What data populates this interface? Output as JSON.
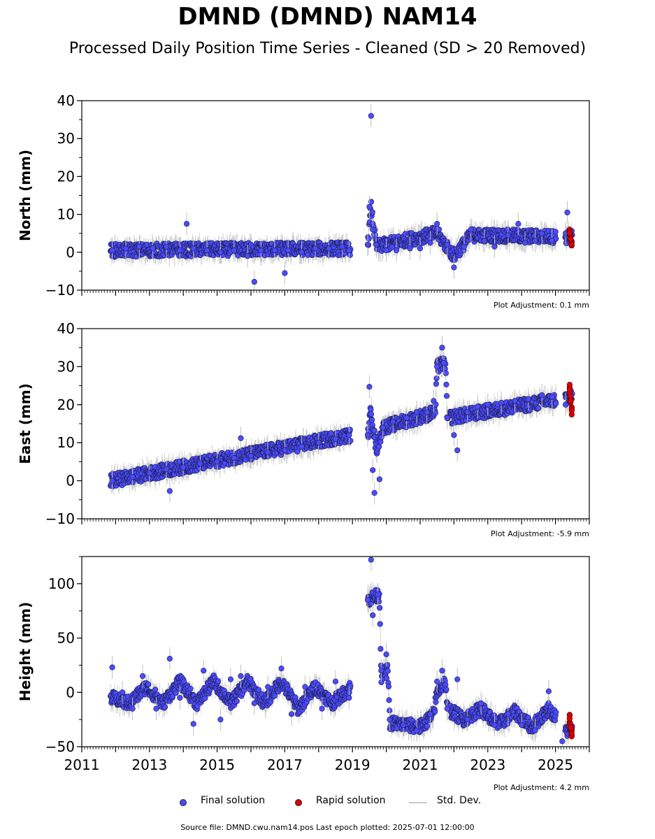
{
  "title": "DMND (DMND) NAM14",
  "subtitle": "Processed Daily Position Time Series - Cleaned (SD > 20 Removed)",
  "legend": {
    "final": "Final solution",
    "rapid": "Rapid solution",
    "std": "Std. Dev."
  },
  "source": "Source file: DMND.cwu.nam14.pos  Last epoch plotted: 2025-07-01 12:00:00",
  "colors": {
    "final": "#4b4bff",
    "rapid": "#e00000",
    "std": "#bfbfbf"
  },
  "chart_data": [
    {
      "type": "scatter",
      "ylabel": "North (mm)",
      "ylim": [
        -10,
        40
      ],
      "yticks": [
        -10,
        0,
        10,
        20,
        30,
        40
      ],
      "xlim": [
        2011,
        2026
      ],
      "adjustment": "Plot Adjustment: 0.1 mm",
      "final_series": [
        [
          2011.9,
          0.5
        ],
        [
          2012.3,
          1.0
        ],
        [
          2012.7,
          1.5
        ],
        [
          2013.1,
          1.0
        ],
        [
          2013.5,
          1.5
        ],
        [
          2013.9,
          0.5
        ],
        [
          2014.1,
          7.5
        ],
        [
          2014.3,
          1.0
        ],
        [
          2014.7,
          0.5
        ],
        [
          2015.1,
          0.0
        ],
        [
          2015.5,
          0.5
        ],
        [
          2015.9,
          -1.0
        ],
        [
          2016.1,
          -7.8
        ],
        [
          2016.3,
          0.5
        ],
        [
          2016.7,
          0.5
        ],
        [
          2017.0,
          -5.5
        ],
        [
          2017.1,
          0.5
        ],
        [
          2017.5,
          0.0
        ],
        [
          2017.9,
          1.0
        ],
        [
          2018.3,
          1.0
        ],
        [
          2018.7,
          1.5
        ],
        [
          2018.9,
          0.5
        ],
        [
          2019.45,
          2.0
        ],
        [
          2019.5,
          12.0
        ],
        [
          2019.55,
          36.0
        ],
        [
          2019.6,
          6.0
        ],
        [
          2019.7,
          2.0
        ],
        [
          2020.0,
          0.5
        ],
        [
          2020.3,
          0.5
        ],
        [
          2020.7,
          1.0
        ],
        [
          2021.0,
          1.0
        ],
        [
          2021.3,
          2.5
        ],
        [
          2021.5,
          7.5
        ],
        [
          2021.8,
          2.0
        ],
        [
          2022.0,
          -4.0
        ],
        [
          2022.3,
          1.5
        ],
        [
          2022.5,
          6.0
        ],
        [
          2022.9,
          3.0
        ],
        [
          2023.2,
          1.5
        ],
        [
          2023.6,
          4.5
        ],
        [
          2023.9,
          7.5
        ],
        [
          2024.1,
          2.5
        ],
        [
          2024.4,
          3.0
        ],
        [
          2024.6,
          5.0
        ],
        [
          2024.9,
          3.0
        ],
        [
          2025.3,
          5.0
        ],
        [
          2025.35,
          10.5
        ]
      ],
      "rapid_series": [
        [
          2025.42,
          5.0
        ],
        [
          2025.45,
          3.5
        ],
        [
          2025.48,
          2.0
        ]
      ],
      "trend": [
        [
          2011.85,
          0.5
        ],
        [
          2018.95,
          1.0
        ],
        [
          2019.45,
          1.5
        ],
        [
          2019.55,
          12.0
        ],
        [
          2019.7,
          1.5
        ],
        [
          2021.5,
          5.0
        ],
        [
          2022.0,
          -1.0
        ],
        [
          2022.5,
          4.5
        ],
        [
          2025.5,
          4.0
        ]
      ]
    },
    {
      "type": "scatter",
      "ylabel": "East (mm)",
      "ylim": [
        -10,
        40
      ],
      "yticks": [
        -10,
        0,
        10,
        20,
        30,
        40
      ],
      "xlim": [
        2011,
        2026
      ],
      "adjustment": "Plot Adjustment: -5.9 mm",
      "final_series": [
        [
          2011.9,
          0.0
        ],
        [
          2012.5,
          1.0
        ],
        [
          2013.0,
          2.0
        ],
        [
          2013.5,
          3.0
        ],
        [
          2013.6,
          -2.7
        ],
        [
          2014.0,
          3.5
        ],
        [
          2014.5,
          4.5
        ],
        [
          2015.0,
          5.0
        ],
        [
          2015.5,
          6.0
        ],
        [
          2015.7,
          11.2
        ],
        [
          2016.0,
          6.5
        ],
        [
          2016.5,
          7.5
        ],
        [
          2017.0,
          8.0
        ],
        [
          2017.5,
          9.0
        ],
        [
          2018.0,
          10.0
        ],
        [
          2018.5,
          11.0
        ],
        [
          2018.9,
          12.0
        ],
        [
          2019.45,
          12.0
        ],
        [
          2019.5,
          24.7
        ],
        [
          2019.6,
          2.8
        ],
        [
          2019.65,
          -3.2
        ],
        [
          2019.8,
          0.4
        ],
        [
          2019.9,
          14.0
        ],
        [
          2020.2,
          15.5
        ],
        [
          2020.6,
          16.5
        ],
        [
          2020.9,
          18.0
        ],
        [
          2021.2,
          18.0
        ],
        [
          2021.4,
          21.0
        ],
        [
          2021.5,
          30.0
        ],
        [
          2021.65,
          35.0
        ],
        [
          2021.7,
          31.0
        ],
        [
          2021.8,
          16.5
        ],
        [
          2022.0,
          12.0
        ],
        [
          2022.1,
          8.0
        ],
        [
          2022.4,
          18.0
        ],
        [
          2022.7,
          19.5
        ],
        [
          2023.0,
          20.0
        ],
        [
          2023.4,
          20.5
        ],
        [
          2023.8,
          21.0
        ],
        [
          2024.2,
          21.5
        ],
        [
          2024.6,
          22.5
        ],
        [
          2024.9,
          22.0
        ],
        [
          2025.3,
          20.0
        ]
      ],
      "rapid_series": [
        [
          2025.42,
          24.0
        ],
        [
          2025.45,
          21.0
        ],
        [
          2025.48,
          18.4
        ]
      ],
      "trend": [
        [
          2011.85,
          0.0
        ],
        [
          2018.95,
          12.0
        ],
        [
          2019.45,
          11.5
        ],
        [
          2019.55,
          19.0
        ],
        [
          2019.7,
          8.0
        ],
        [
          2019.9,
          14.0
        ],
        [
          2021.45,
          18.0
        ],
        [
          2021.5,
          30.0
        ],
        [
          2021.75,
          31.0
        ],
        [
          2021.8,
          16.5
        ],
        [
          2025.5,
          22.0
        ]
      ]
    },
    {
      "type": "scatter",
      "ylabel": "Height (mm)",
      "ylim": [
        -50,
        125
      ],
      "yticks": [
        -50,
        0,
        50,
        100
      ],
      "xlim": [
        2011,
        2026
      ],
      "xticks": [
        2011,
        2013,
        2015,
        2017,
        2019,
        2021,
        2023,
        2025
      ],
      "adjustment": "Plot Adjustment: 4.2 mm",
      "final_series": [
        [
          2011.9,
          23.0
        ],
        [
          2012.2,
          0.0
        ],
        [
          2012.5,
          -15.0
        ],
        [
          2012.8,
          15.0
        ],
        [
          2013.2,
          -15.0
        ],
        [
          2013.6,
          31.0
        ],
        [
          2013.9,
          -5.0
        ],
        [
          2014.3,
          -29.0
        ],
        [
          2014.6,
          20.0
        ],
        [
          2015.1,
          -25.0
        ],
        [
          2015.4,
          12.0
        ],
        [
          2015.7,
          15.0
        ],
        [
          2016.1,
          -10.0
        ],
        [
          2016.5,
          5.0
        ],
        [
          2016.9,
          22.0
        ],
        [
          2017.2,
          -20.0
        ],
        [
          2017.6,
          5.0
        ],
        [
          2018.1,
          -15.0
        ],
        [
          2018.5,
          10.0
        ],
        [
          2018.9,
          -5.0
        ],
        [
          2019.45,
          85.0
        ],
        [
          2019.55,
          122.0
        ],
        [
          2019.6,
          71.0
        ],
        [
          2019.75,
          90.0
        ],
        [
          2019.85,
          20.0
        ],
        [
          2020.0,
          35.0
        ],
        [
          2020.1,
          -25.0
        ],
        [
          2020.5,
          -30.0
        ],
        [
          2020.9,
          -35.0
        ],
        [
          2021.3,
          -20.0
        ],
        [
          2021.5,
          10.0
        ],
        [
          2021.65,
          20.0
        ],
        [
          2021.8,
          -15.0
        ],
        [
          2022.1,
          12.0
        ],
        [
          2022.4,
          -25.0
        ],
        [
          2022.8,
          -10.0
        ],
        [
          2023.2,
          -30.0
        ],
        [
          2023.6,
          -20.0
        ],
        [
          2024.0,
          -30.0
        ],
        [
          2024.4,
          -35.0
        ],
        [
          2024.8,
          1.0
        ],
        [
          2025.2,
          -45.0
        ]
      ],
      "rapid_series": [
        [
          2025.42,
          -24.0
        ],
        [
          2025.45,
          -32.0
        ],
        [
          2025.48,
          -38.0
        ]
      ],
      "trend": [
        [
          2011.85,
          -5.0
        ],
        [
          2012.4,
          -10.0
        ],
        [
          2012.9,
          5.0
        ],
        [
          2013.4,
          -10.0
        ],
        [
          2013.9,
          10.0
        ],
        [
          2014.4,
          -10.0
        ],
        [
          2014.9,
          10.0
        ],
        [
          2015.4,
          -10.0
        ],
        [
          2015.9,
          10.0
        ],
        [
          2016.4,
          -10.0
        ],
        [
          2016.9,
          10.0
        ],
        [
          2017.4,
          -15.0
        ],
        [
          2017.9,
          5.0
        ],
        [
          2018.4,
          -10.0
        ],
        [
          2018.95,
          5.0
        ],
        [
          2019.45,
          85.0
        ],
        [
          2019.8,
          90.0
        ],
        [
          2019.85,
          15.0
        ],
        [
          2020.05,
          20.0
        ],
        [
          2020.1,
          -28.0
        ],
        [
          2020.6,
          -30.0
        ],
        [
          2021.0,
          -32.0
        ],
        [
          2021.4,
          -20.0
        ],
        [
          2021.5,
          0.0
        ],
        [
          2021.75,
          10.0
        ],
        [
          2021.8,
          -15.0
        ],
        [
          2022.3,
          -25.0
        ],
        [
          2022.8,
          -15.0
        ],
        [
          2023.3,
          -30.0
        ],
        [
          2023.8,
          -18.0
        ],
        [
          2024.3,
          -32.0
        ],
        [
          2024.8,
          -15.0
        ],
        [
          2025.3,
          -35.0
        ]
      ]
    }
  ]
}
